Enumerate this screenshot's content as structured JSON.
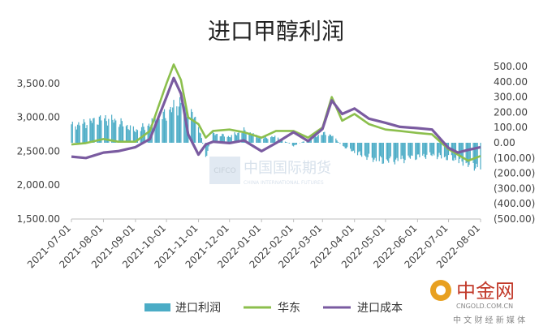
{
  "chart_data": {
    "type": "line",
    "title": "进口甲醇利润",
    "left_axis": {
      "ylim": [
        1500,
        3750
      ],
      "ticks": [
        "1,500.00",
        "2,000.00",
        "2,500.00",
        "3,000.00",
        "3,500.00"
      ],
      "tick_values": [
        1500,
        2000,
        2500,
        3000,
        3500
      ]
    },
    "right_axis": {
      "ylim": [
        -500,
        500
      ],
      "ticks": [
        "500.00",
        "400.00",
        "300.00",
        "200.00",
        "100.00",
        "0.00",
        "(100.00)",
        "(200.00)",
        "(300.00)",
        "(400.00)",
        "(500.00)"
      ],
      "tick_values": [
        500,
        400,
        300,
        200,
        100,
        0,
        -100,
        -200,
        -300,
        -400,
        -500
      ]
    },
    "x_ticks": [
      "2021-07-01",
      "2021-08-01",
      "2021-09-01",
      "2021-10-01",
      "2021-11-01",
      "2021-12-01",
      "2022-01-01",
      "2022-02-01",
      "2022-03-01",
      "2022-04-01",
      "2022-05-01",
      "2022-06-01",
      "2022-07-01",
      "2022-08-01"
    ],
    "x_range": [
      "2021-07-01",
      "2022-08-01"
    ],
    "series": [
      {
        "name": "进口利润",
        "kind": "bar",
        "axis": "right",
        "color": "#4bacc6",
        "x": [
          "2021-07-01",
          "2021-07-15",
          "2021-08-01",
          "2021-08-15",
          "2021-09-01",
          "2021-09-15",
          "2021-10-01",
          "2021-10-08",
          "2021-10-15",
          "2021-10-22",
          "2021-11-01",
          "2021-11-08",
          "2021-11-15",
          "2021-12-01",
          "2021-12-15",
          "2022-01-01",
          "2022-01-15",
          "2022-02-01",
          "2022-02-15",
          "2022-03-01",
          "2022-03-10",
          "2022-03-20",
          "2022-04-01",
          "2022-04-15",
          "2022-05-01",
          "2022-05-15",
          "2022-06-01",
          "2022-06-15",
          "2022-07-01",
          "2022-07-10",
          "2022-07-20",
          "2022-08-01"
        ],
        "values": [
          110,
          130,
          160,
          140,
          80,
          120,
          190,
          230,
          260,
          220,
          120,
          -100,
          60,
          40,
          80,
          30,
          40,
          -20,
          20,
          60,
          50,
          -20,
          -60,
          -100,
          -120,
          -110,
          -90,
          -80,
          -100,
          -110,
          -140,
          -160
        ]
      },
      {
        "name": "华东",
        "kind": "line",
        "axis": "left",
        "color": "#8cbf4d",
        "x": [
          "2021-07-01",
          "2021-07-15",
          "2021-08-01",
          "2021-08-15",
          "2021-09-01",
          "2021-09-15",
          "2021-10-01",
          "2021-10-08",
          "2021-10-15",
          "2021-10-22",
          "2021-11-01",
          "2021-11-08",
          "2021-11-15",
          "2021-12-01",
          "2021-12-15",
          "2022-01-01",
          "2022-01-15",
          "2022-02-01",
          "2022-02-15",
          "2022-03-01",
          "2022-03-10",
          "2022-03-20",
          "2022-04-01",
          "2022-04-15",
          "2022-05-01",
          "2022-05-15",
          "2022-06-01",
          "2022-06-15",
          "2022-07-01",
          "2022-07-10",
          "2022-07-20",
          "2022-08-01"
        ],
        "values": [
          2600,
          2620,
          2680,
          2640,
          2640,
          2800,
          3500,
          3780,
          3550,
          3000,
          2900,
          2700,
          2800,
          2820,
          2780,
          2700,
          2800,
          2800,
          2700,
          2850,
          3300,
          2950,
          3050,
          2900,
          2820,
          2800,
          2770,
          2750,
          2530,
          2450,
          2360,
          2430
        ]
      },
      {
        "name": "进口成本",
        "kind": "line",
        "axis": "left",
        "color": "#7a5ba0",
        "x": [
          "2021-07-01",
          "2021-07-15",
          "2021-08-01",
          "2021-08-15",
          "2021-09-01",
          "2021-09-15",
          "2021-10-01",
          "2021-10-08",
          "2021-10-15",
          "2021-10-22",
          "2021-11-01",
          "2021-11-08",
          "2021-11-15",
          "2021-12-01",
          "2021-12-15",
          "2022-01-01",
          "2022-01-15",
          "2022-02-01",
          "2022-02-15",
          "2022-03-01",
          "2022-03-10",
          "2022-03-20",
          "2022-04-01",
          "2022-04-15",
          "2022-05-01",
          "2022-05-15",
          "2022-06-01",
          "2022-06-15",
          "2022-07-01",
          "2022-07-10",
          "2022-07-20",
          "2022-08-01"
        ],
        "values": [
          2420,
          2400,
          2480,
          2500,
          2560,
          2680,
          3300,
          3580,
          3350,
          2750,
          2450,
          2600,
          2640,
          2620,
          2660,
          2500,
          2620,
          2780,
          2650,
          2830,
          3250,
          3050,
          3130,
          2980,
          2920,
          2860,
          2840,
          2820,
          2550,
          2480,
          2520,
          2560
        ]
      }
    ],
    "legend_position": "bottom",
    "grid": false,
    "watermark": "中国国际期货",
    "watermark_sub": "CHINA INTERNATIONAL FUTURES",
    "watermark_logo": "CIFCO",
    "source_logo": "中金网",
    "source_url": "CNGOLD.COM.CN",
    "source_tagline": "中 文 财 经 新 媒 体"
  }
}
